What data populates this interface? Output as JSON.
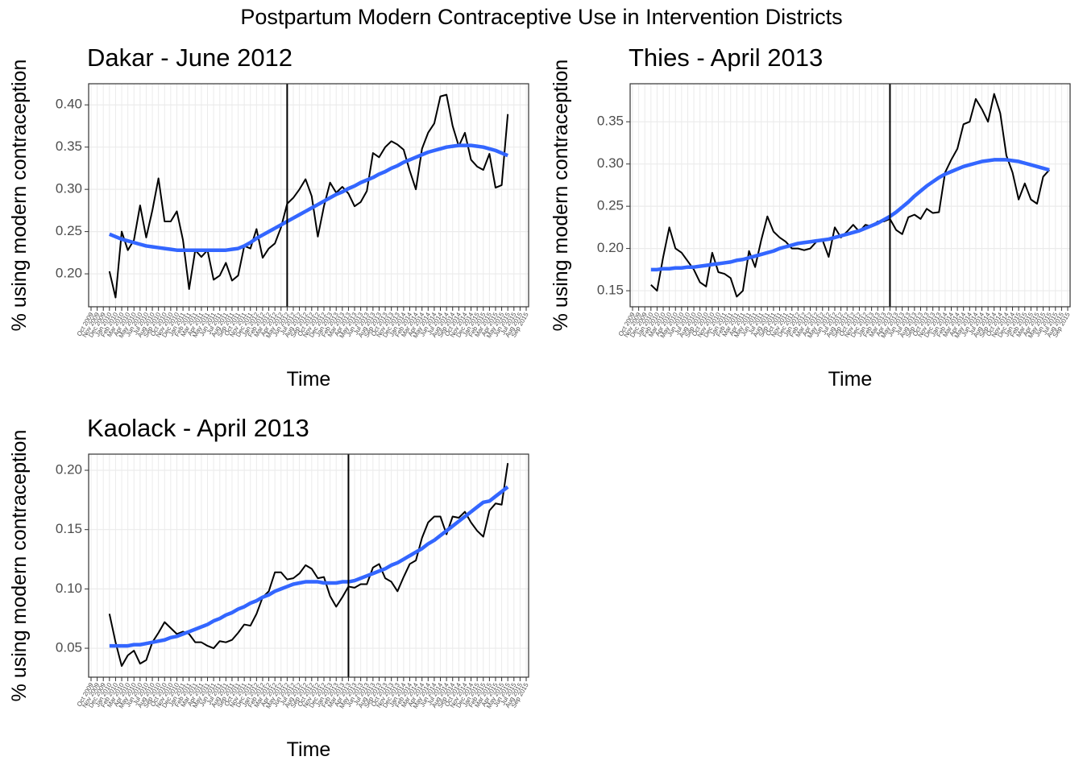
{
  "title": "Postpartum Modern Contraceptive Use in Intervention Districts",
  "chart_data": [
    {
      "type": "line",
      "title": "Dakar - June 2012",
      "x_label": "Time",
      "y_label": "% using modern contraception",
      "vline": "Jun 2012",
      "grid": true,
      "x": [
        "Oct 2009",
        "Nov 2009",
        "Dec 2009",
        "Jan 2010",
        "Feb 2010",
        "Mar 2010",
        "Apr 2010",
        "May 2010",
        "Jun 2010",
        "Jul 2010",
        "Aug 2010",
        "Sep 2010",
        "Oct 2010",
        "Nov 2010",
        "Dec 2010",
        "Jan 2011",
        "Feb 2011",
        "Mar 2011",
        "Apr 2011",
        "May 2011",
        "Jun 2011",
        "Jul 2011",
        "Aug 2011",
        "Sep 2011",
        "Oct 2011",
        "Nov 2011",
        "Dec 2011",
        "Jan 2012",
        "Feb 2012",
        "Mar 2012",
        "Apr 2012",
        "May 2012",
        "Jun 2012",
        "Jul 2012",
        "Aug 2012",
        "Sep 2012",
        "Oct 2012",
        "Nov 2012",
        "Dec 2012",
        "Jan 2013",
        "Feb 2013",
        "Mar 2013",
        "Apr 2013",
        "May 2013",
        "Jun 2013",
        "Jul 2013",
        "Aug 2013",
        "Sep 2013",
        "Oct 2013",
        "Nov 2013",
        "Dec 2013",
        "Jan 2014",
        "Feb 2014",
        "Mar 2014",
        "Apr 2014",
        "May 2014",
        "Jun 2014",
        "Jul 2014",
        "Aug 2014",
        "Sep 2014",
        "Oct 2014",
        "Nov 2014",
        "Dec 2014",
        "Jan 2015",
        "Feb 2015",
        "Mar 2015",
        "Apr 2015",
        "May 2015",
        "Jun 2015",
        "Jul 2015",
        "Aug 2015",
        "Sep 2015"
      ],
      "ylim": [
        0.161,
        0.425
      ],
      "yticks": [
        {
          "value": 0.2,
          "label": "0.20"
        },
        {
          "value": 0.25,
          "label": "0.25"
        },
        {
          "value": 0.3,
          "label": "0.30"
        },
        {
          "value": 0.35,
          "label": "0.35"
        },
        {
          "value": 0.4,
          "label": "0.40"
        }
      ],
      "series": [
        {
          "color": "#000000",
          "line_width": 2,
          "values": [
            null,
            null,
            null,
            0.203,
            0.172,
            0.25,
            0.228,
            0.24,
            0.281,
            0.243,
            0.275,
            0.313,
            0.262,
            0.262,
            0.274,
            0.24,
            0.182,
            0.228,
            0.22,
            0.228,
            0.193,
            0.198,
            0.213,
            0.192,
            0.198,
            0.233,
            0.23,
            0.253,
            0.219,
            0.23,
            0.236,
            0.255,
            0.283,
            0.29,
            0.3,
            0.312,
            0.292,
            0.244,
            0.28,
            0.308,
            0.296,
            0.303,
            0.295,
            0.28,
            0.285,
            0.298,
            0.343,
            0.338,
            0.35,
            0.357,
            0.353,
            0.347,
            0.322,
            0.3,
            0.348,
            0.367,
            0.378,
            0.41,
            0.412,
            0.375,
            0.351,
            0.367,
            0.335,
            0.327,
            0.323,
            0.342,
            0.302,
            0.305,
            0.389,
            null,
            null,
            null
          ]
        },
        {
          "color": "#3366ff",
          "line_width": 4.5,
          "values": [
            null,
            null,
            null,
            0.247,
            0.244,
            0.241,
            0.239,
            0.237,
            0.235,
            0.233,
            0.232,
            0.231,
            0.23,
            0.229,
            0.228,
            0.228,
            0.228,
            0.228,
            0.228,
            0.228,
            0.228,
            0.228,
            0.228,
            0.229,
            0.23,
            0.233,
            0.237,
            0.242,
            0.246,
            0.25,
            0.254,
            0.258,
            0.262,
            0.266,
            0.27,
            0.274,
            0.278,
            0.282,
            0.286,
            0.29,
            0.294,
            0.297,
            0.301,
            0.304,
            0.308,
            0.311,
            0.314,
            0.318,
            0.321,
            0.325,
            0.328,
            0.332,
            0.335,
            0.338,
            0.341,
            0.344,
            0.346,
            0.348,
            0.35,
            0.351,
            0.352,
            0.352,
            0.352,
            0.351,
            0.35,
            0.348,
            0.346,
            0.343,
            0.34,
            null,
            null,
            null
          ]
        }
      ]
    },
    {
      "type": "line",
      "title": "Thies - April 2013",
      "x_label": "Time",
      "y_label": "% using modern contraception",
      "vline": "Apr 2013",
      "grid": true,
      "x": [
        "Oct 2009",
        "Nov 2009",
        "Dec 2009",
        "Jan 2010",
        "Feb 2010",
        "Mar 2010",
        "Apr 2010",
        "May 2010",
        "Jun 2010",
        "Jul 2010",
        "Aug 2010",
        "Sep 2010",
        "Oct 2010",
        "Nov 2010",
        "Dec 2010",
        "Jan 2011",
        "Feb 2011",
        "Mar 2011",
        "Apr 2011",
        "May 2011",
        "Jun 2011",
        "Jul 2011",
        "Aug 2011",
        "Sep 2011",
        "Oct 2011",
        "Nov 2011",
        "Dec 2011",
        "Jan 2012",
        "Feb 2012",
        "Mar 2012",
        "Apr 2012",
        "May 2012",
        "Jun 2012",
        "Jul 2012",
        "Aug 2012",
        "Sep 2012",
        "Oct 2012",
        "Nov 2012",
        "Dec 2012",
        "Jan 2013",
        "Feb 2013",
        "Mar 2013",
        "Apr 2013",
        "May 2013",
        "Jun 2013",
        "Jul 2013",
        "Aug 2013",
        "Sep 2013",
        "Oct 2013",
        "Nov 2013",
        "Dec 2013",
        "Jan 2014",
        "Feb 2014",
        "Mar 2014",
        "Apr 2014",
        "May 2014",
        "Jun 2014",
        "Jul 2014",
        "Aug 2014",
        "Sep 2014",
        "Oct 2014",
        "Nov 2014",
        "Dec 2014",
        "Jan 2015",
        "Feb 2015",
        "Mar 2015",
        "Apr 2015",
        "May 2015",
        "Jun 2015",
        "Jul 2015",
        "Aug 2015",
        "Sep 2015"
      ],
      "ylim": [
        0.131,
        0.395
      ],
      "yticks": [
        {
          "value": 0.15,
          "label": "0.15"
        },
        {
          "value": 0.2,
          "label": "0.20"
        },
        {
          "value": 0.25,
          "label": "0.25"
        },
        {
          "value": 0.3,
          "label": "0.30"
        },
        {
          "value": 0.35,
          "label": "0.35"
        }
      ],
      "series": [
        {
          "color": "#000000",
          "line_width": 2,
          "values": [
            null,
            null,
            null,
            0.157,
            0.15,
            0.19,
            0.225,
            0.2,
            0.195,
            0.185,
            0.175,
            0.16,
            0.155,
            0.195,
            0.172,
            0.17,
            0.165,
            0.143,
            0.15,
            0.197,
            0.178,
            0.21,
            0.238,
            0.22,
            0.213,
            0.208,
            0.2,
            0.2,
            0.198,
            0.2,
            0.208,
            0.21,
            0.19,
            0.225,
            0.213,
            0.22,
            0.228,
            0.22,
            0.228,
            0.226,
            0.232,
            0.232,
            0.235,
            0.222,
            0.217,
            0.237,
            0.24,
            0.235,
            0.247,
            0.242,
            0.243,
            0.29,
            0.305,
            0.318,
            0.347,
            0.35,
            0.377,
            0.365,
            0.35,
            0.383,
            0.36,
            0.31,
            0.29,
            0.258,
            0.277,
            0.258,
            0.253,
            0.285,
            0.293,
            null,
            null,
            null
          ]
        },
        {
          "color": "#3366ff",
          "line_width": 4.5,
          "values": [
            null,
            null,
            null,
            0.175,
            0.175,
            0.176,
            0.176,
            0.177,
            0.177,
            0.178,
            0.178,
            0.179,
            0.18,
            0.181,
            0.182,
            0.183,
            0.184,
            0.186,
            0.187,
            0.189,
            0.191,
            0.193,
            0.195,
            0.197,
            0.2,
            0.202,
            0.204,
            0.206,
            0.207,
            0.208,
            0.209,
            0.21,
            0.211,
            0.213,
            0.215,
            0.217,
            0.219,
            0.221,
            0.224,
            0.227,
            0.23,
            0.234,
            0.238,
            0.243,
            0.249,
            0.255,
            0.262,
            0.268,
            0.274,
            0.279,
            0.284,
            0.288,
            0.291,
            0.294,
            0.297,
            0.299,
            0.301,
            0.303,
            0.304,
            0.305,
            0.305,
            0.305,
            0.304,
            0.303,
            0.301,
            0.299,
            0.297,
            0.295,
            0.293,
            null,
            null,
            null
          ]
        }
      ]
    },
    {
      "type": "line",
      "title": "Kaolack - April 2013",
      "x_label": "Time",
      "y_label": "% using modern contraception",
      "vline": "Apr 2013",
      "grid": true,
      "x": [
        "Oct 2009",
        "Nov 2009",
        "Dec 2009",
        "Jan 2010",
        "Feb 2010",
        "Mar 2010",
        "Apr 2010",
        "May 2010",
        "Jun 2010",
        "Jul 2010",
        "Aug 2010",
        "Sep 2010",
        "Oct 2010",
        "Nov 2010",
        "Dec 2010",
        "Jan 2011",
        "Feb 2011",
        "Mar 2011",
        "Apr 2011",
        "May 2011",
        "Jun 2011",
        "Jul 2011",
        "Aug 2011",
        "Sep 2011",
        "Oct 2011",
        "Nov 2011",
        "Dec 2011",
        "Jan 2012",
        "Feb 2012",
        "Mar 2012",
        "Apr 2012",
        "May 2012",
        "Jun 2012",
        "Jul 2012",
        "Aug 2012",
        "Sep 2012",
        "Oct 2012",
        "Nov 2012",
        "Dec 2012",
        "Jan 2013",
        "Feb 2013",
        "Mar 2013",
        "Apr 2013",
        "May 2013",
        "Jun 2013",
        "Jul 2013",
        "Aug 2013",
        "Sep 2013",
        "Oct 2013",
        "Nov 2013",
        "Dec 2013",
        "Jan 2014",
        "Feb 2014",
        "Mar 2014",
        "Apr 2014",
        "May 2014",
        "Jun 2014",
        "Jul 2014",
        "Aug 2014",
        "Sep 2014",
        "Oct 2014",
        "Nov 2014",
        "Dec 2014",
        "Jan 2015",
        "Feb 2015",
        "Mar 2015",
        "Apr 2015",
        "May 2015",
        "Jun 2015",
        "Jul 2015",
        "Aug 2015",
        "Sep 2015"
      ],
      "ylim": [
        0.0256,
        0.2136
      ],
      "yticks": [
        {
          "value": 0.05,
          "label": "0.05"
        },
        {
          "value": 0.1,
          "label": "0.10"
        },
        {
          "value": 0.15,
          "label": "0.15"
        },
        {
          "value": 0.2,
          "label": "0.20"
        }
      ],
      "series": [
        {
          "color": "#000000",
          "line_width": 2,
          "values": [
            null,
            null,
            null,
            0.079,
            0.055,
            0.035,
            0.044,
            0.048,
            0.037,
            0.04,
            0.055,
            0.063,
            0.072,
            0.067,
            0.062,
            0.064,
            0.062,
            0.055,
            0.055,
            0.052,
            0.05,
            0.056,
            0.055,
            0.057,
            0.063,
            0.07,
            0.069,
            0.079,
            0.093,
            0.098,
            0.114,
            0.114,
            0.108,
            0.109,
            0.113,
            0.12,
            0.117,
            0.109,
            0.11,
            0.094,
            0.085,
            0.093,
            0.102,
            0.101,
            0.104,
            0.104,
            0.118,
            0.121,
            0.109,
            0.106,
            0.098,
            0.11,
            0.121,
            0.124,
            0.143,
            0.156,
            0.161,
            0.161,
            0.146,
            0.161,
            0.16,
            0.165,
            0.156,
            0.149,
            0.144,
            0.166,
            0.172,
            0.171,
            0.206,
            null,
            null,
            null
          ]
        },
        {
          "color": "#3366ff",
          "line_width": 4.5,
          "values": [
            null,
            null,
            null,
            0.052,
            0.052,
            0.052,
            0.052,
            0.053,
            0.053,
            0.054,
            0.055,
            0.056,
            0.057,
            0.059,
            0.06,
            0.062,
            0.064,
            0.066,
            0.068,
            0.07,
            0.073,
            0.075,
            0.078,
            0.08,
            0.083,
            0.085,
            0.088,
            0.09,
            0.093,
            0.095,
            0.098,
            0.1,
            0.102,
            0.104,
            0.105,
            0.106,
            0.106,
            0.106,
            0.105,
            0.105,
            0.105,
            0.106,
            0.106,
            0.107,
            0.109,
            0.111,
            0.113,
            0.115,
            0.117,
            0.12,
            0.122,
            0.125,
            0.128,
            0.131,
            0.134,
            0.138,
            0.141,
            0.145,
            0.149,
            0.153,
            0.157,
            0.161,
            0.165,
            0.169,
            0.173,
            0.174,
            0.178,
            0.182,
            0.186,
            null,
            null,
            null
          ]
        }
      ]
    }
  ]
}
